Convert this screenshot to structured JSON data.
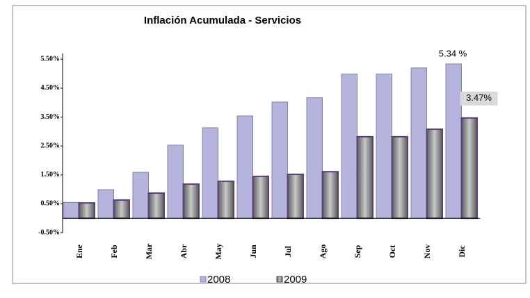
{
  "chart_data": {
    "type": "bar",
    "title": "Inflación Acumulada - Servicios",
    "categories": [
      "Ene",
      "Feb",
      "Mar",
      "Abr",
      "May",
      "Jun",
      "Jul",
      "Ago",
      "Sep",
      "Oct",
      "Nov",
      "Dic"
    ],
    "series": [
      {
        "name": "2008",
        "color": "#b4b4dc",
        "values": [
          0.55,
          0.99,
          1.59,
          2.53,
          3.13,
          3.54,
          4.02,
          4.17,
          4.99,
          4.99,
          5.2,
          5.34
        ],
        "value_labels": [
          null,
          null,
          null,
          null,
          null,
          null,
          null,
          null,
          null,
          null,
          null,
          "5.34 %"
        ]
      },
      {
        "name": "2009",
        "color": "#8c8c8c",
        "values": [
          0.53,
          0.63,
          0.87,
          1.18,
          1.28,
          1.45,
          1.52,
          1.61,
          2.82,
          2.82,
          3.08,
          3.47
        ],
        "value_labels": [
          null,
          null,
          null,
          null,
          null,
          null,
          null,
          null,
          null,
          null,
          null,
          "3.47%"
        ]
      }
    ],
    "ylim": [
      -0.5,
      5.7
    ],
    "yticks": [
      {
        "value": -0.5,
        "label": "-0.50%"
      },
      {
        "value": 0.5,
        "label": "0.50%"
      },
      {
        "value": 1.5,
        "label": "1.50%"
      },
      {
        "value": 2.5,
        "label": "2.50%"
      },
      {
        "value": 3.5,
        "label": "3.50%"
      },
      {
        "value": 4.5,
        "label": "4.50%"
      },
      {
        "value": 5.5,
        "label": "5.50%"
      }
    ],
    "legend": "bottom"
  }
}
